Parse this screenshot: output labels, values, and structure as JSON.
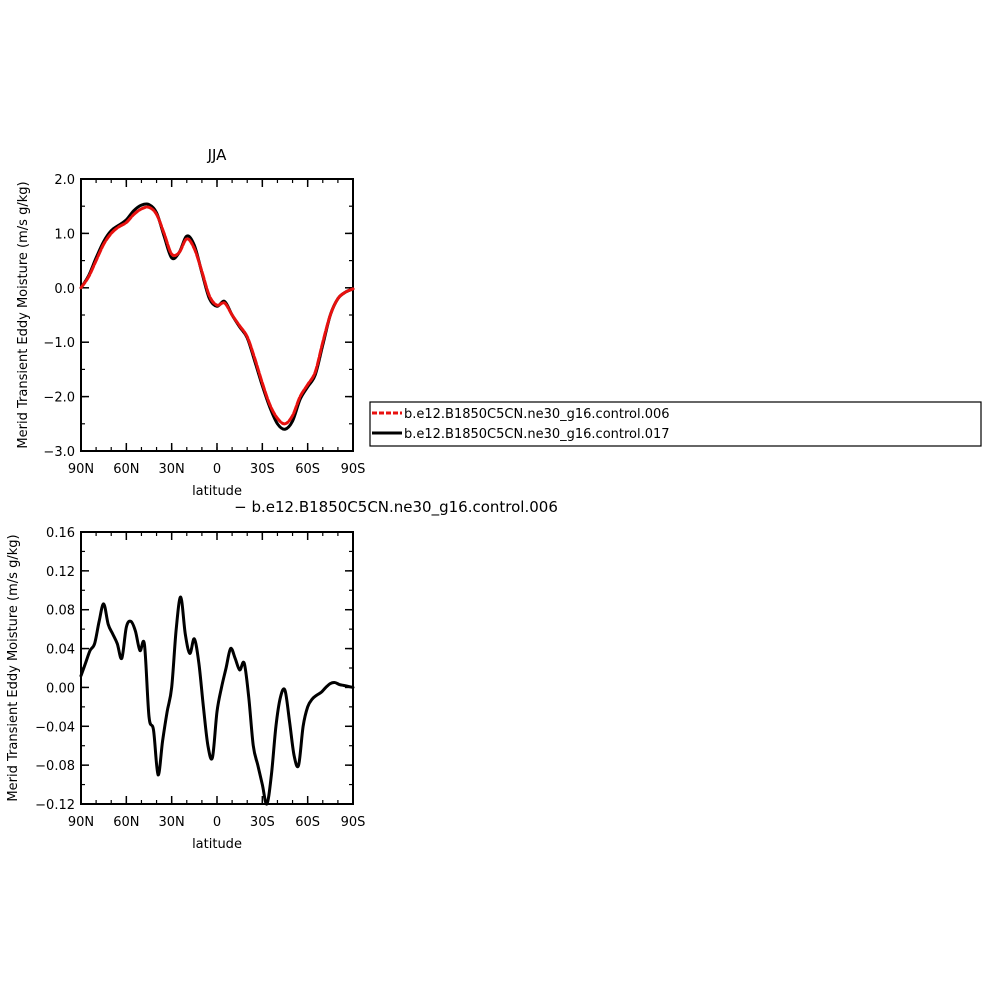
{
  "chart_data": [
    {
      "type": "line",
      "title": "JJA",
      "xlabel": "latitude",
      "ylabel": "Merid Transient Eddy Moisture (m/s g/kg)",
      "xlim": [
        -90,
        90
      ],
      "ylim": [
        -3.0,
        2.0
      ],
      "xticks": [
        -90,
        -60,
        -30,
        0,
        30,
        60,
        90
      ],
      "xtick_labels": [
        "90N",
        "60N",
        "30N",
        "0",
        "30S",
        "60S",
        "90S"
      ],
      "yticks": [
        2.0,
        1.0,
        0.0,
        -1.0,
        -2.0,
        -3.0
      ],
      "ytick_labels": [
        "2.0",
        "1.0",
        "0.0",
        "−1.0",
        "−2.0",
        "−3.0"
      ],
      "legend": "right",
      "series": [
        {
          "name": "b.e12.B1850C5CN.ne30_g16.control.006",
          "color": "#e8110f",
          "dash": "dashed",
          "x": [
            -90,
            -85,
            -80,
            -75,
            -70,
            -65,
            -60,
            -55,
            -50,
            -45,
            -40,
            -35,
            -30,
            -25,
            -20,
            -15,
            -10,
            -5,
            0,
            5,
            10,
            15,
            20,
            25,
            30,
            35,
            40,
            45,
            50,
            55,
            60,
            65,
            70,
            75,
            80,
            85,
            90
          ],
          "values": [
            0.0,
            0.2,
            0.5,
            0.8,
            1.0,
            1.12,
            1.2,
            1.35,
            1.45,
            1.48,
            1.35,
            1.0,
            0.62,
            0.65,
            0.9,
            0.72,
            0.3,
            -0.15,
            -0.32,
            -0.28,
            -0.5,
            -0.7,
            -0.9,
            -1.3,
            -1.75,
            -2.15,
            -2.4,
            -2.5,
            -2.35,
            -2.0,
            -1.78,
            -1.55,
            -1.0,
            -0.5,
            -0.2,
            -0.08,
            -0.02
          ]
        },
        {
          "name": "b.e12.B1850C5CN.ne30_g16.control.017",
          "color": "#000000",
          "dash": "solid",
          "x": [
            -90,
            -85,
            -80,
            -75,
            -70,
            -65,
            -60,
            -55,
            -50,
            -45,
            -40,
            -35,
            -30,
            -25,
            -20,
            -15,
            -10,
            -5,
            0,
            5,
            10,
            15,
            20,
            25,
            30,
            35,
            40,
            45,
            50,
            55,
            60,
            65,
            70,
            75,
            80,
            85,
            90
          ],
          "values": [
            0.0,
            0.22,
            0.55,
            0.85,
            1.05,
            1.15,
            1.25,
            1.42,
            1.52,
            1.53,
            1.38,
            0.95,
            0.55,
            0.65,
            0.95,
            0.78,
            0.28,
            -0.2,
            -0.34,
            -0.25,
            -0.5,
            -0.72,
            -0.92,
            -1.35,
            -1.8,
            -2.2,
            -2.5,
            -2.6,
            -2.45,
            -2.05,
            -1.82,
            -1.6,
            -1.05,
            -0.5,
            -0.2,
            -0.08,
            -0.02
          ]
        }
      ]
    },
    {
      "type": "line",
      "title": "− b.e12.B1850C5CN.ne30_g16.control.006",
      "xlabel": "latitude",
      "ylabel": "Merid Transient Eddy Moisture (m/s g/kg)",
      "xlim": [
        -90,
        90
      ],
      "ylim": [
        -0.12,
        0.16
      ],
      "xticks": [
        -90,
        -60,
        -30,
        0,
        30,
        60,
        90
      ],
      "xtick_labels": [
        "90N",
        "60N",
        "30N",
        "0",
        "30S",
        "60S",
        "90S"
      ],
      "yticks": [
        0.16,
        0.12,
        0.08,
        0.04,
        0.0,
        -0.04,
        -0.08,
        -0.12
      ],
      "ytick_labels": [
        "0.16",
        "0.12",
        "0.08",
        "0.04",
        "0.00",
        "−0.04",
        "−0.08",
        "−0.12"
      ],
      "series": [
        {
          "name": "",
          "color": "#000000",
          "dash": "solid",
          "x": [
            -90,
            -87,
            -84,
            -81,
            -78,
            -75,
            -72,
            -69,
            -66,
            -63,
            -60,
            -57,
            -54,
            -51,
            -48,
            -45,
            -42,
            -39,
            -36,
            -33,
            -30,
            -27,
            -24,
            -21,
            -18,
            -15,
            -12,
            -9,
            -6,
            -3,
            0,
            3,
            6,
            9,
            12,
            15,
            18,
            21,
            24,
            27,
            30,
            33,
            36,
            39,
            42,
            45,
            48,
            51,
            54,
            57,
            60,
            63,
            66,
            69,
            72,
            75,
            78,
            81,
            84,
            87,
            90
          ],
          "values": [
            0.012,
            0.025,
            0.038,
            0.045,
            0.068,
            0.086,
            0.065,
            0.055,
            0.045,
            0.03,
            0.062,
            0.068,
            0.058,
            0.038,
            0.044,
            -0.03,
            -0.044,
            -0.09,
            -0.055,
            -0.025,
            0.0,
            0.06,
            0.093,
            0.055,
            0.035,
            0.05,
            0.025,
            -0.02,
            -0.06,
            -0.072,
            -0.025,
            0.0,
            0.02,
            0.04,
            0.03,
            0.018,
            0.025,
            -0.01,
            -0.06,
            -0.08,
            -0.1,
            -0.12,
            -0.09,
            -0.04,
            -0.01,
            -0.003,
            -0.035,
            -0.07,
            -0.08,
            -0.04,
            -0.02,
            -0.012,
            -0.008,
            -0.005,
            0.0,
            0.004,
            0.005,
            0.003,
            0.002,
            0.001,
            0.0
          ]
        }
      ]
    }
  ]
}
